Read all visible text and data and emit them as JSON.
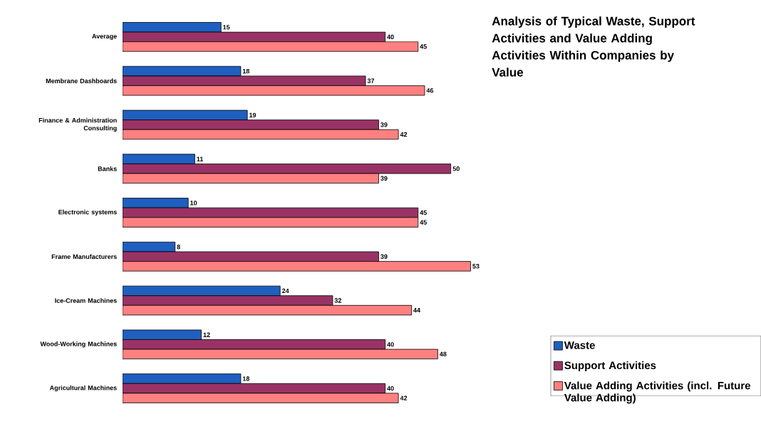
{
  "chart_data": {
    "type": "bar",
    "orientation": "horizontal",
    "title": "Analysis of Typical Waste, Support Activities and Value Adding Activities Within Companies by Value",
    "categories": [
      "Average",
      "Membrane Dashboards",
      "Finance & Administration Consulting",
      "Banks",
      "Electronic systems",
      "Frame Manufacturers",
      "Ice-Cream Machines",
      "Wood-Working Machines",
      "Agricultural Machines"
    ],
    "series": [
      {
        "name": "Waste",
        "color": "#1f5fbf",
        "values": [
          15,
          18,
          19,
          11,
          10,
          8,
          24,
          12,
          18
        ]
      },
      {
        "name": "Support Activities",
        "color": "#993366",
        "values": [
          40,
          37,
          39,
          50,
          45,
          39,
          32,
          40,
          40
        ]
      },
      {
        "name": "Value Adding Activities (incl. Future Value Adding)",
        "color": "#ff8080",
        "values": [
          45,
          46,
          42,
          39,
          45,
          53,
          44,
          48,
          42
        ]
      }
    ],
    "data_labels": true,
    "legend": "bottom right"
  }
}
